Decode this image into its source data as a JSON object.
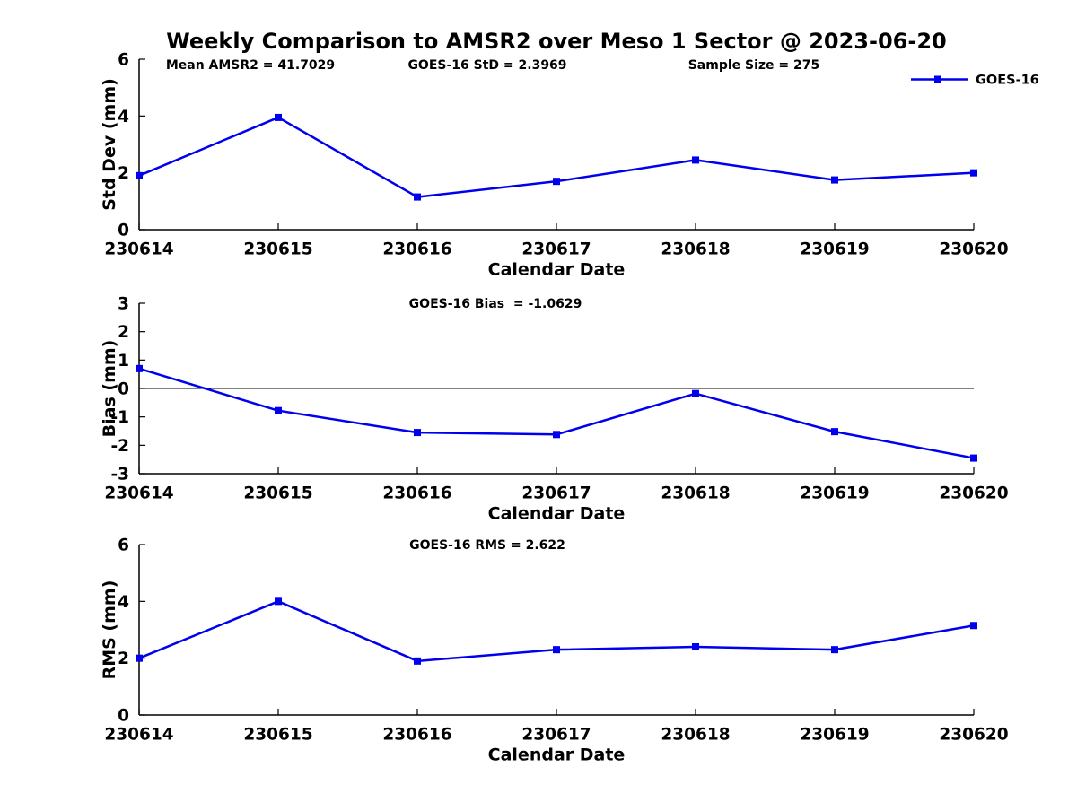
{
  "title": "Weekly Comparison to AMSR2 over Meso 1 Sector @ 2023-06-20",
  "legend": {
    "label": "GOES-16",
    "position": "top-right"
  },
  "colors": {
    "series": "#0000ee",
    "axis": "#000000",
    "text": "#000000",
    "background": "#ffffff"
  },
  "chart_data": [
    {
      "type": "line",
      "name": "std-dev",
      "categories": [
        "230614",
        "230615",
        "230616",
        "230617",
        "230618",
        "230619",
        "230620"
      ],
      "series": [
        {
          "name": "GOES-16",
          "values": [
            1.9,
            3.95,
            1.15,
            1.7,
            2.45,
            1.75,
            2.0
          ],
          "color": "#0000ee",
          "marker": "square"
        }
      ],
      "xlabel": "Calendar Date",
      "ylabel": "Std Dev (mm)",
      "ylim": [
        0,
        6
      ],
      "yticks": [
        0,
        2,
        4,
        6
      ],
      "grid": false,
      "legend_visible": true,
      "zero_line": false,
      "annotations": [
        {
          "text": "Mean AMSR2 = 41.7029"
        },
        {
          "text": "GOES-16 StD = 2.3969"
        },
        {
          "text": "Sample Size = 275"
        }
      ]
    },
    {
      "type": "line",
      "name": "bias",
      "categories": [
        "230614",
        "230615",
        "230616",
        "230617",
        "230618",
        "230619",
        "230620"
      ],
      "series": [
        {
          "name": "GOES-16",
          "values": [
            0.7,
            -0.78,
            -1.55,
            -1.62,
            -0.18,
            -1.52,
            -2.45
          ],
          "color": "#0000ee",
          "marker": "square"
        }
      ],
      "xlabel": "Calendar Date",
      "ylabel": "Bias (mm)",
      "ylim": [
        -3,
        3
      ],
      "yticks": [
        -3,
        -2,
        -1,
        0,
        1,
        2,
        3
      ],
      "grid": false,
      "legend_visible": false,
      "zero_line": true,
      "annotations": [
        {
          "text": "GOES-16 Bias  = -1.0629"
        }
      ]
    },
    {
      "type": "line",
      "name": "rms",
      "categories": [
        "230614",
        "230615",
        "230616",
        "230617",
        "230618",
        "230619",
        "230620"
      ],
      "series": [
        {
          "name": "GOES-16",
          "values": [
            2.0,
            4.0,
            1.9,
            2.3,
            2.4,
            2.3,
            3.15
          ],
          "color": "#0000ee",
          "marker": "square"
        }
      ],
      "xlabel": "Calendar Date",
      "ylabel": "RMS (mm)",
      "ylim": [
        0,
        6
      ],
      "yticks": [
        0,
        2,
        4,
        6
      ],
      "grid": false,
      "legend_visible": false,
      "zero_line": false,
      "annotations": [
        {
          "text": "GOES-16 RMS = 2.622"
        }
      ]
    }
  ]
}
